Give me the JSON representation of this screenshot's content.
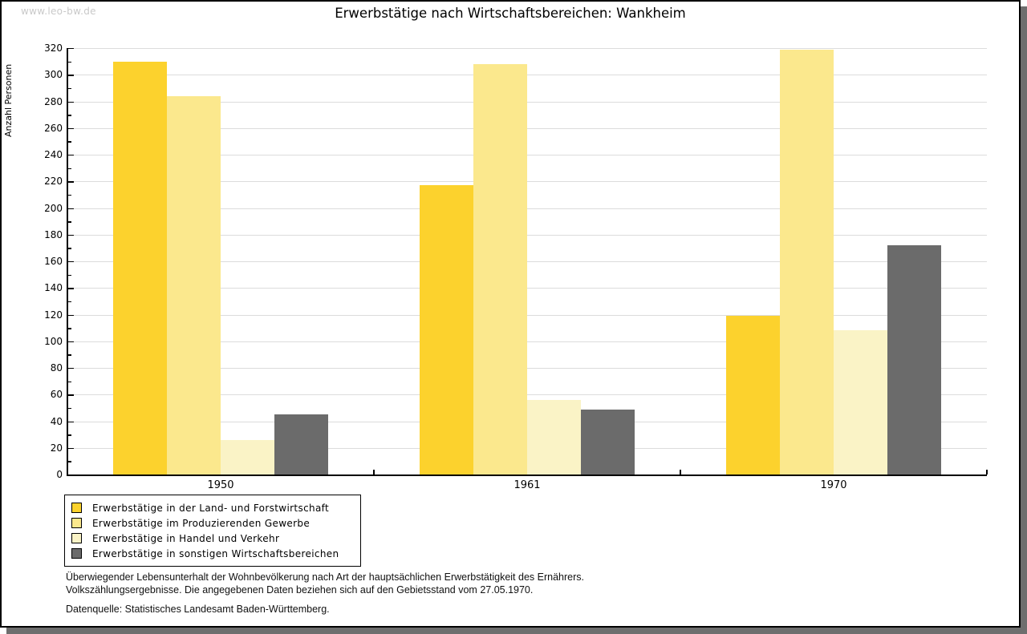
{
  "watermark": "www.leo-bw.de",
  "title": "Erwerbstätige nach Wirtschaftsbereichen: Wankheim",
  "footer": {
    "line1": "Überwiegender Lebensunterhalt der Wohnbevölkerung nach Art der hauptsächlichen Erwerbstätigkeit des Ernährers.",
    "line2": "Volkszählungsergebnisse. Die angegebenen Daten beziehen sich auf den Gebietsstand vom 27.05.1970.",
    "source": "Datenquelle: Statistisches Landesamt Baden-Württemberg."
  },
  "chart_data": {
    "type": "bar",
    "title": "Erwerbstätige nach Wirtschaftsbereichen: Wankheim",
    "xlabel": "",
    "ylabel": "Anzahl Personen",
    "ylim": [
      0,
      320
    ],
    "ytick_step": 20,
    "ytick_minor_step": 10,
    "grid": true,
    "legend_position": "bottom-left",
    "categories": [
      "1950",
      "1961",
      "1970"
    ],
    "series": [
      {
        "name": "Erwerbstätige in der Land- und Forstwirtschaft",
        "color": "#FCD22D",
        "values": [
          310,
          217,
          119
        ]
      },
      {
        "name": "Erwerbstätige im Produzierenden Gewerbe",
        "color": "#FBE88D",
        "values": [
          284,
          308,
          319
        ]
      },
      {
        "name": "Erwerbstätige in Handel und Verkehr",
        "color": "#FAF3C6",
        "values": [
          26,
          56,
          108
        ]
      },
      {
        "name": "Erwerbstätige in sonstigen Wirtschaftsbereichen",
        "color": "#6B6B6B",
        "values": [
          45,
          49,
          172
        ]
      }
    ],
    "axis_color": "#000000",
    "gridline_color": "#dcdcdc",
    "background_color": "#ffffff"
  }
}
